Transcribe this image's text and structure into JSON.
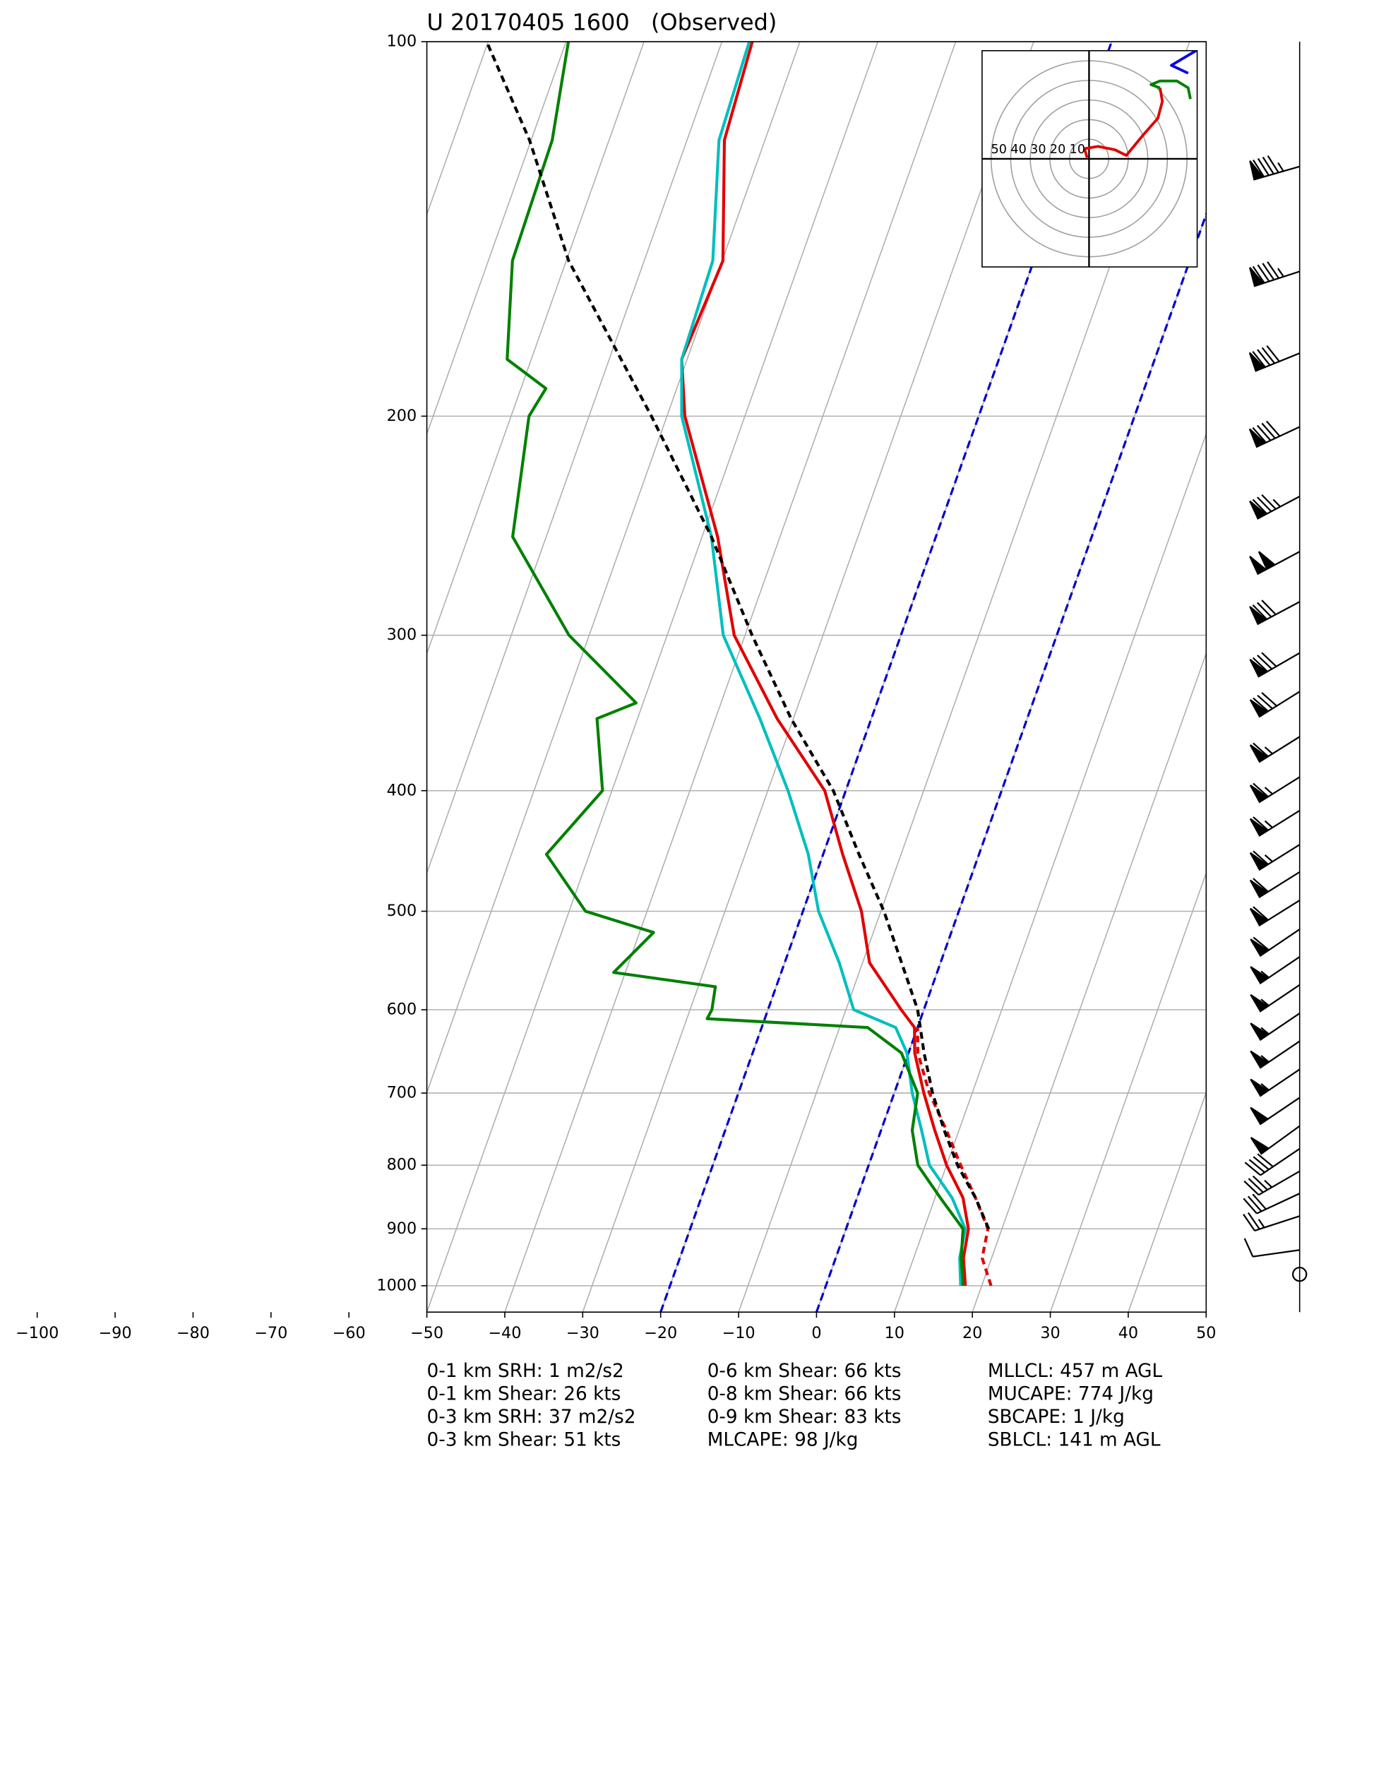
{
  "chart_data": {
    "type": "skewt",
    "title": "U 20170405 1600   (Observed)",
    "xlim": [
      -50,
      50
    ],
    "ylim": [
      1050,
      100
    ],
    "log_y": true,
    "grid": true,
    "xticks": [
      {
        "value": -100,
        "label": "−100"
      },
      {
        "value": -90,
        "label": "−90"
      },
      {
        "value": -80,
        "label": "−80"
      },
      {
        "value": -70,
        "label": "−70"
      },
      {
        "value": -60,
        "label": "−60"
      },
      {
        "value": -50,
        "label": "−50"
      },
      {
        "value": -40,
        "label": "−40"
      },
      {
        "value": -30,
        "label": "−30"
      },
      {
        "value": -20,
        "label": "−20"
      },
      {
        "value": -10,
        "label": "−10"
      },
      0,
      10,
      20,
      30,
      40,
      50
    ],
    "yticks": [
      100,
      200,
      300,
      400,
      500,
      600,
      700,
      800,
      900,
      1000
    ],
    "isotherm_step": 10,
    "highlight_isotherms": [
      -20,
      0
    ],
    "highlight_color": "#0000cc",
    "series": [
      {
        "color": "#e00000",
        "style": "solid",
        "pressure": [
          1000,
          950,
          900,
          850,
          800,
          750,
          700,
          650,
          620,
          600,
          550,
          500,
          450,
          400,
          350,
          300,
          250,
          200,
          180,
          150,
          120,
          100
        ],
        "values": [
          17.9,
          16.4,
          15.7,
          13.6,
          10.0,
          6.9,
          3.8,
          0.8,
          -0.4,
          -2.9,
          -9.1,
          -12.5,
          -17.5,
          -22.7,
          -32.1,
          -41.4,
          -48.0,
          -57.7,
          -60.7,
          -59.9,
          -65.2,
          -66.1
        ]
      },
      {
        "color": "#00bfbf",
        "style": "solid",
        "pressure": [
          1000,
          950,
          900,
          850,
          800,
          750,
          700,
          650,
          620,
          600,
          550,
          500,
          450,
          400,
          350,
          300,
          250,
          200,
          180,
          150,
          120,
          100
        ],
        "values": [
          17.3,
          15.9,
          15.3,
          12.2,
          7.8,
          5.2,
          2.3,
          -0.2,
          -2.8,
          -9.0,
          -13.0,
          -18.0,
          -21.9,
          -27.4,
          -34.3,
          -42.8,
          -48.8,
          -58.1,
          -60.7,
          -61.2,
          -65.9,
          -66.5
        ]
      },
      {
        "color": "#008000",
        "style": "solid",
        "pressure": [
          1000,
          950,
          900,
          850,
          800,
          750,
          700,
          650,
          620,
          610,
          600,
          575,
          560,
          520,
          500,
          450,
          400,
          350,
          340,
          300,
          250,
          200,
          190,
          180,
          150,
          120,
          100
        ],
        "values": [
          17.6,
          16.1,
          15.0,
          10.7,
          6.3,
          4.0,
          3.0,
          -0.9,
          -6.4,
          -27.4,
          -27.2,
          -27.8,
          -41.5,
          -38.2,
          -47.9,
          -55.5,
          -51.2,
          -55.2,
          -50.9,
          -62.6,
          -74.3,
          -77.7,
          -76.8,
          -83.1,
          -86.9,
          -87.3,
          -89.7
        ]
      },
      {
        "color": "#e00000",
        "style": "dashed",
        "pressure": [
          1000,
          950,
          900,
          850,
          800,
          750,
          700,
          650,
          620
        ],
        "values": [
          21.2,
          18.8,
          18.2,
          15.2,
          11.8,
          8.4,
          4.5,
          1.2,
          0.0
        ]
      },
      {
        "color": "#000000",
        "style": "dashed",
        "pressure": [
          900,
          850,
          800,
          750,
          700,
          650,
          600,
          500,
          450,
          400,
          350,
          300,
          250,
          200,
          150,
          120,
          100
        ],
        "values": [
          18.3,
          15.2,
          11.4,
          8.1,
          4.9,
          2.0,
          -0.8,
          -9.6,
          -15.4,
          -21.6,
          -30.3,
          -39.1,
          -48.8,
          -62.0,
          -79.7,
          -90.2,
          -100.2
        ]
      }
    ],
    "winds": {
      "pressure": [
        126,
        153,
        178,
        204,
        232,
        257,
        282,
        310,
        333,
        362,
        390,
        415,
        442,
        465,
        490,
        517,
        544,
        573,
        604,
        636,
        670,
        706,
        744,
        776,
        809,
        843,
        879,
        936,
        979
      ],
      "speed": [
        95,
        95,
        90,
        90,
        85,
        100,
        80,
        80,
        80,
        65,
        65,
        65,
        65,
        60,
        60,
        60,
        55,
        55,
        55,
        55,
        55,
        50,
        50,
        40,
        35,
        30,
        25,
        10,
        0
      ],
      "direction": [
        254,
        252,
        248,
        245,
        242,
        242,
        242,
        240,
        238,
        238,
        238,
        238,
        238,
        238,
        238,
        236,
        236,
        236,
        236,
        236,
        236,
        236,
        234,
        236,
        240,
        245,
        252,
        262,
        0
      ]
    },
    "hodograph": {
      "rings": [
        10,
        20,
        30,
        40,
        50
      ],
      "series": [
        {
          "color": "#e00000",
          "u": [
            -1,
            -2.3,
            4.6,
            13.2,
            19,
            27.6,
            35.1,
            37.4,
            36.2
          ],
          "v": [
            0.6,
            5.2,
            6.3,
            4.6,
            1.7,
            12.1,
            20.7,
            29.3,
            36.2
          ]
        },
        {
          "color": "#008000",
          "u": [
            36.2,
            31.6,
            36.2,
            44.8,
            50.6,
            51.7
          ],
          "v": [
            36.2,
            37.9,
            39.7,
            39.7,
            36.2,
            30.5
          ]
        },
        {
          "color": "#0000ee",
          "u": [
            50.6,
            42,
            47.7,
            54.6
          ],
          "v": [
            43.7,
            47.7,
            51.1,
            55.2
          ]
        }
      ]
    },
    "annotations": [
      [
        "0-1 km SRH: 1 m2/s2",
        "0-1 km Shear: 26 kts",
        "0-3 km SRH: 37 m2/s2",
        "0-3 km Shear: 51 kts"
      ],
      [
        "0-6 km Shear: 66 kts",
        "0-8 km Shear: 66 kts",
        "0-9 km Shear: 83 kts",
        "MLCAPE: 98 J/kg"
      ],
      [
        "MLLCL: 457 m AGL",
        "MUCAPE: 774 J/kg",
        "SBCAPE: 1 J/kg",
        "SBLCL: 141 m AGL"
      ]
    ]
  }
}
